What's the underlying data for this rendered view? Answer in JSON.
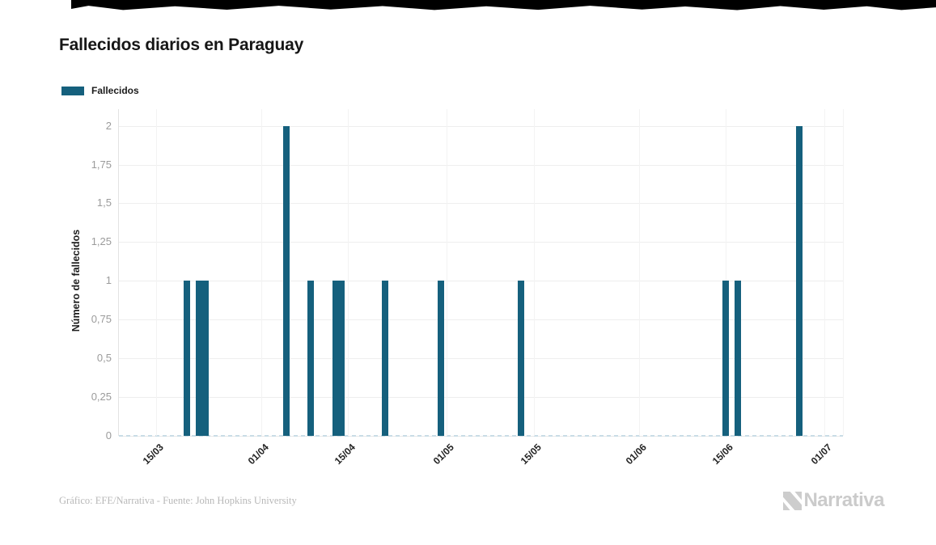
{
  "header": {
    "title": "Fallecidos diarios en Paraguay"
  },
  "legend": {
    "items": [
      {
        "label": "Fallecidos",
        "color": "#15607d"
      }
    ]
  },
  "chart_data": {
    "type": "bar",
    "title": "Fallecidos diarios en Paraguay",
    "ylabel": "Número de fallecidos",
    "ylim": [
      0,
      2
    ],
    "grid": true,
    "legend_position": "top-left",
    "decimal_separator": ",",
    "bar_color": "#15607d",
    "x_domain": [
      "09/03",
      "04/07"
    ],
    "x_ticks": [
      "15/03",
      "01/04",
      "15/04",
      "01/05",
      "15/05",
      "01/06",
      "15/06",
      "01/07"
    ],
    "y_ticks": [
      {
        "value": 0,
        "label": "0"
      },
      {
        "value": 0.25,
        "label": "0,25"
      },
      {
        "value": 0.5,
        "label": "0,5"
      },
      {
        "value": 0.75,
        "label": "0,75"
      },
      {
        "value": 1,
        "label": "1"
      },
      {
        "value": 1.25,
        "label": "1,25"
      },
      {
        "value": 1.5,
        "label": "1,5"
      },
      {
        "value": 1.75,
        "label": "1,75"
      },
      {
        "value": 2,
        "label": "2"
      }
    ],
    "series": [
      {
        "name": "Fallecidos",
        "color": "#15607d",
        "points": [
          {
            "date": "20/03",
            "value": 1
          },
          {
            "date": "22/03",
            "value": 1
          },
          {
            "date": "23/03",
            "value": 1
          },
          {
            "date": "05/04",
            "value": 2
          },
          {
            "date": "09/04",
            "value": 1
          },
          {
            "date": "13/04",
            "value": 1
          },
          {
            "date": "14/04",
            "value": 1
          },
          {
            "date": "21/04",
            "value": 1
          },
          {
            "date": "30/04",
            "value": 1
          },
          {
            "date": "13/05",
            "value": 1
          },
          {
            "date": "15/06",
            "value": 1
          },
          {
            "date": "17/06",
            "value": 1
          },
          {
            "date": "27/06",
            "value": 2
          }
        ]
      }
    ]
  },
  "footer": {
    "credit": "Gráfico: EFE/Narrativa - Fuente: John Hopkins University",
    "logo_text": "Narrativa"
  }
}
